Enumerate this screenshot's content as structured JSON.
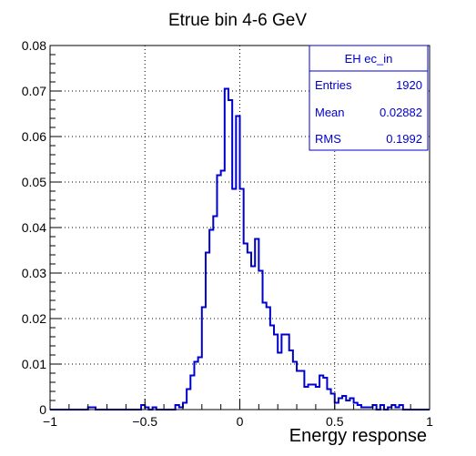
{
  "chart_data": {
    "type": "histogram",
    "title": "Etrue bin 4-6 GeV",
    "xlabel": "Energy response",
    "ylabel": "",
    "xlim": [
      -1,
      1
    ],
    "ylim": [
      0,
      0.08
    ],
    "x_ticks": [
      "−1",
      "−0.5",
      "0",
      "0.5",
      "1"
    ],
    "x_tick_values": [
      -1,
      -0.5,
      0,
      0.5,
      1
    ],
    "y_ticks": [
      "0",
      "0.01",
      "0.02",
      "0.03",
      "0.04",
      "0.05",
      "0.06",
      "0.07",
      "0.08"
    ],
    "y_tick_values": [
      0,
      0.01,
      0.02,
      0.03,
      0.04,
      0.05,
      0.06,
      0.07,
      0.08
    ],
    "grid": true,
    "line_color": "#0000cc",
    "bin_edges_start": -1,
    "bin_width": 0.02,
    "values": [
      0,
      0,
      0,
      0,
      0,
      0,
      0,
      0,
      0,
      0,
      0.0005,
      0.0005,
      0,
      0,
      0,
      0,
      0,
      0,
      0,
      0,
      0,
      0,
      0,
      0,
      0.001,
      0.0005,
      0,
      0.0005,
      0,
      0,
      0,
      0,
      0,
      0.001,
      0.0005,
      0.0015,
      0.0045,
      0.0075,
      0.0105,
      0.0115,
      0.0225,
      0.0345,
      0.0395,
      0.0425,
      0.0515,
      0.0525,
      0.0705,
      0.068,
      0.0485,
      0.0645,
      0.0485,
      0.0365,
      0.0345,
      0.0315,
      0.0375,
      0.0305,
      0.0235,
      0.0225,
      0.0185,
      0.0165,
      0.0125,
      0.0165,
      0.0165,
      0.013,
      0.0105,
      0.0085,
      0.0085,
      0.005,
      0.0055,
      0.0055,
      0.005,
      0.0075,
      0.007,
      0.0045,
      0.0035,
      0.0015,
      0.0025,
      0.003,
      0.002,
      0.0025,
      0.0015,
      0.001,
      0.0005,
      0.0005,
      0.0005,
      0.001,
      0,
      0.001,
      0,
      0.0005,
      0.001,
      0.0005,
      0.001,
      0,
      0,
      0,
      0,
      0,
      0,
      0
    ],
    "legend_position": "top-right",
    "stats": {
      "name": "EH ec_in",
      "rows": [
        {
          "label": "Entries",
          "value": "1920"
        },
        {
          "label": "Mean",
          "value": "0.02882"
        },
        {
          "label": "RMS",
          "value": "0.1992"
        }
      ]
    }
  }
}
